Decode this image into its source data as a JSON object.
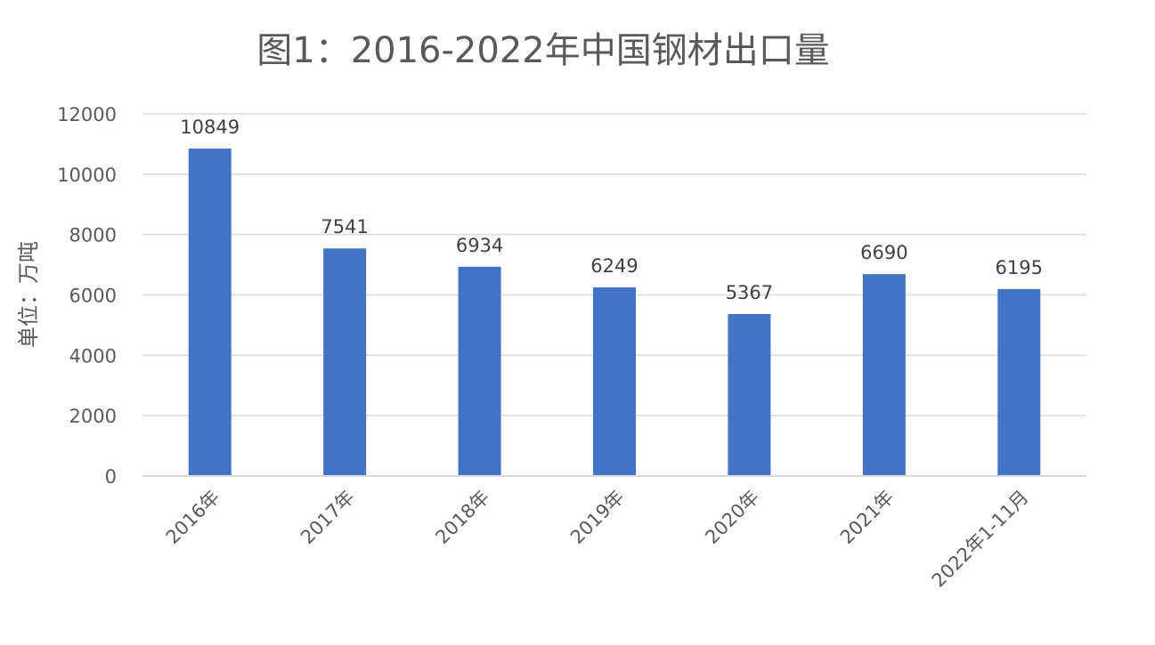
{
  "chart_data": {
    "type": "bar",
    "title": "图1：2016-2022年中国钢材出口量",
    "xlabel": "",
    "ylabel": "单位：万吨",
    "categories": [
      "2016年",
      "2017年",
      "2018年",
      "2019年",
      "2020年",
      "2021年",
      "2022年1-11月"
    ],
    "values": [
      10849,
      7541,
      6934,
      6249,
      5367,
      6690,
      6195
    ],
    "data_labels": [
      "10849",
      "7541",
      "6934",
      "6249",
      "5367",
      "6690",
      "6195"
    ],
    "ylim": [
      0,
      12000
    ],
    "yticks": [
      0,
      2000,
      4000,
      6000,
      8000,
      10000,
      12000
    ],
    "ytick_labels": [
      "0",
      "2000",
      "4000",
      "6000",
      "8000",
      "10000",
      "12000"
    ],
    "grid": true,
    "legend": "none",
    "bar_color": "#4472c4"
  }
}
